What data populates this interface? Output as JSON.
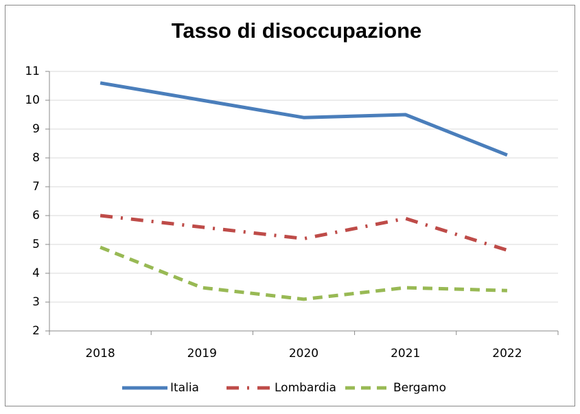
{
  "chart_data": {
    "type": "line",
    "title": "Tasso di disoccupazione",
    "categories": [
      "2018",
      "2019",
      "2020",
      "2021",
      "2022"
    ],
    "series": [
      {
        "name": "Italia",
        "color": "#4a7ebb",
        "dash": "solid",
        "values": [
          10.6,
          10.0,
          9.4,
          9.5,
          8.1
        ]
      },
      {
        "name": "Lombardia",
        "color": "#be4b48",
        "dash": "dashdot",
        "values": [
          6.0,
          5.6,
          5.2,
          5.9,
          4.8
        ]
      },
      {
        "name": "Bergamo",
        "color": "#98b954",
        "dash": "dashed",
        "values": [
          4.9,
          3.5,
          3.1,
          3.5,
          3.4
        ]
      }
    ],
    "ylim": [
      2,
      11
    ],
    "yticks": [
      2,
      3,
      4,
      5,
      6,
      7,
      8,
      9,
      10,
      11
    ],
    "grid": true,
    "legend": "bottom"
  }
}
